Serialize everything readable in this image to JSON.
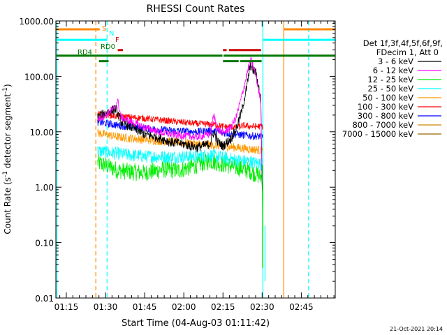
{
  "chart_data": {
    "type": "line",
    "title": "RHESSI Count Rates",
    "xlabel": "Start Time (04-Aug-03 01:11:42)",
    "ylabel": "Count Rate (s⁻¹ detector segment⁻¹)",
    "ylabel_parts": [
      "Count Rate (s",
      "-1",
      " detector segment",
      "-1",
      ")"
    ],
    "yscale": "log",
    "ylim": [
      0.01,
      1000
    ],
    "xlim_minutes": [
      71.0,
      178.0
    ],
    "xtick_labels": [
      "01:15",
      "01:30",
      "01:45",
      "02:00",
      "02:15",
      "02:30",
      "02:45"
    ],
    "xtick_minutes": [
      75,
      90,
      105,
      120,
      135,
      150,
      165
    ],
    "ytick_labels": [
      "0.01",
      "0.10",
      "1.00",
      "10.00",
      "100.00",
      "1000.00"
    ],
    "ytick_values": [
      0.01,
      0.1,
      1,
      10,
      100,
      1000
    ],
    "legend_header": [
      "Det 1f,3f,4f,5f,6f,9f,",
      "FDecim 1, Att 0"
    ],
    "legend_position": "right",
    "stamp": "21-Oct-2021 20:14",
    "data_start_minutes": 87.0,
    "data_end_minutes": 150.3,
    "series": [
      {
        "name": "3 - 6 keV",
        "color": "#000000",
        "x": [
          87,
          90,
          94,
          96,
          100,
          105,
          110,
          115,
          120,
          125,
          130,
          131.5,
          133,
          135,
          138,
          140,
          142,
          144,
          145.5,
          146.5,
          147.5,
          148.5,
          149.5,
          150,
          150.3
        ],
        "y": [
          18,
          22,
          26,
          15,
          12,
          9,
          8,
          6.5,
          6,
          5.2,
          6,
          10,
          6.5,
          5.5,
          7.5,
          11,
          22,
          60,
          160,
          130,
          120,
          70,
          40,
          1.0,
          0.85
        ]
      },
      {
        "name": "6 - 12 keV",
        "color": "#ff00ff",
        "x": [
          87,
          90,
          94,
          94.6,
          96,
          100,
          105,
          110,
          115,
          120,
          125,
          130,
          131.5,
          133,
          135,
          138,
          140,
          142,
          144,
          145.5,
          146.5,
          147.5,
          148.5,
          149.5,
          150,
          150.3
        ],
        "y": [
          17,
          20,
          28,
          38,
          18,
          15,
          12,
          10,
          9,
          8.5,
          8,
          9,
          20,
          11,
          9.5,
          12,
          18,
          40,
          100,
          200,
          155,
          110,
          60,
          35,
          1.3,
          1.1
        ]
      },
      {
        "name": "12 - 25 keV",
        "color": "#00ee00",
        "x": [
          87,
          95,
          105,
          112,
          118,
          125,
          130,
          135,
          140,
          145,
          150,
          150.3
        ],
        "y": [
          2.8,
          2.0,
          1.8,
          2.1,
          2.0,
          2.5,
          3.0,
          2.6,
          2.3,
          2.0,
          1.5,
          0.1
        ]
      },
      {
        "name": "25 - 50 keV",
        "color": "#00ffff",
        "x": [
          87,
          95,
          105,
          115,
          125,
          130,
          135,
          140,
          145,
          150,
          150.3
        ],
        "y": [
          4.5,
          4.0,
          3.6,
          3.5,
          3.6,
          3.8,
          3.4,
          3.1,
          2.9,
          2.6,
          2.4
        ]
      },
      {
        "name": "50 - 100 keV",
        "color": "#ff9900",
        "x": [
          87,
          95,
          105,
          115,
          125,
          130,
          135,
          140,
          145,
          150,
          150.3
        ],
        "y": [
          9.5,
          8.0,
          7.2,
          6.6,
          6.0,
          5.8,
          5.5,
          5.2,
          4.9,
          4.6,
          4.5
        ]
      },
      {
        "name": "100 - 300 keV",
        "color": "#ff0000",
        "x": [
          87,
          95,
          105,
          115,
          125,
          132,
          135,
          140,
          143,
          145,
          150,
          150.3
        ],
        "y": [
          21,
          19,
          17.5,
          15.5,
          14,
          13.5,
          12.5,
          12,
          13,
          12.5,
          12.5,
          12.5
        ]
      },
      {
        "name": "300 - 800 keV",
        "color": "#0000ff",
        "x": [
          87,
          95,
          105,
          115,
          125,
          130,
          135,
          140,
          145,
          150,
          150.3
        ],
        "y": [
          15,
          13,
          11.5,
          10.5,
          10,
          10.5,
          9.5,
          9,
          8.5,
          8.2,
          8.2
        ]
      },
      {
        "name": "800 - 7000 keV",
        "color": "#cc8800",
        "x": [],
        "y": []
      },
      {
        "name": "7000 - 15000 keV",
        "color": "#996600",
        "x": [],
        "y": []
      }
    ],
    "vertical_lines": [
      {
        "minute": 71.4,
        "color": "#00ffff",
        "style": "solid"
      },
      {
        "minute": 86.3,
        "color": "#ff8800",
        "style": "dashed"
      },
      {
        "minute": 90.6,
        "color": "#00ffff",
        "style": "dashed"
      },
      {
        "minute": 150.3,
        "color": "#00ffff",
        "style": "solid"
      },
      {
        "minute": 158.3,
        "color": "#ff8800",
        "style": "solid"
      },
      {
        "minute": 167.8,
        "color": "#00ffff",
        "style": "dashed"
      }
    ],
    "flag_bars": [
      {
        "label": "S",
        "color": "#ff8800",
        "y": 1.0,
        "segments": [
          [
            71.2,
            87.8
          ],
          [
            158.3,
            178.0
          ]
        ]
      },
      {
        "label": "N",
        "color": "#00ffff",
        "y": 0.962,
        "segments": [
          [
            71.2,
            90.6
          ],
          [
            150.3,
            178.0
          ]
        ]
      },
      {
        "label": "F",
        "color": "#cc0000",
        "y": 0.925,
        "segments": [
          [
            94.7,
            96.7
          ],
          [
            135.0,
            136.4
          ],
          [
            137.3,
            149.6
          ]
        ]
      },
      {
        "label": "RD0",
        "color": "#007700",
        "y": 0.905,
        "segments": [
          [
            71.2,
            134.8
          ],
          [
            135.2,
            178.0
          ]
        ]
      },
      {
        "label": "RD4",
        "color": "#007700",
        "y": 0.885,
        "segments": [
          [
            87.5,
            91.2
          ],
          [
            135.0,
            141.0
          ],
          [
            141.6,
            149.8
          ]
        ]
      }
    ]
  }
}
